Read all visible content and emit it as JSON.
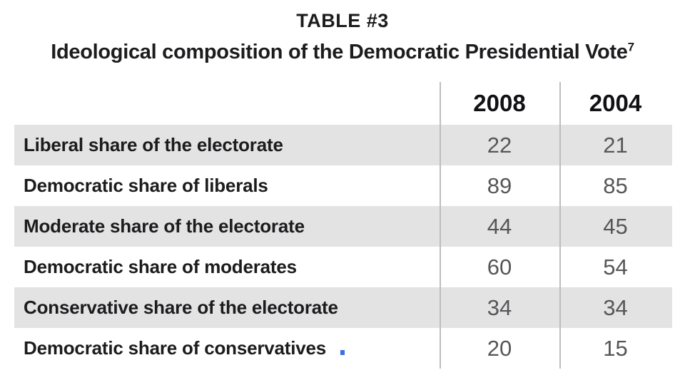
{
  "chart_data": {
    "type": "table",
    "title": "TABLE #3",
    "subtitle": "Ideological composition of the Democratic Presidential Vote",
    "footnote_marker": "7",
    "columns": [
      "2008",
      "2004"
    ],
    "rows": [
      {
        "label": "Liberal share of the electorate",
        "values": [
          22,
          21
        ]
      },
      {
        "label": "Democratic share of liberals",
        "values": [
          89,
          85
        ]
      },
      {
        "label": "Moderate share of the electorate",
        "values": [
          44,
          45
        ]
      },
      {
        "label": "Democratic share of moderates",
        "values": [
          60,
          54
        ]
      },
      {
        "label": "Conservative share of the electorate",
        "values": [
          34,
          34
        ]
      },
      {
        "label": "Democratic share of conservatives",
        "values": [
          20,
          15
        ]
      }
    ],
    "layout": {
      "legend": "none",
      "grid": "two vertical column dividers only",
      "stripes": "alternating rows shaded starting with first data row"
    }
  },
  "colors": {
    "background": "#ffffff",
    "stripe": "#e3e3e4",
    "divider": "#bdbdbf",
    "heading_text": "#1c1c1e",
    "value_text": "#565658",
    "cursor_artifact": "#3e6fe1"
  }
}
